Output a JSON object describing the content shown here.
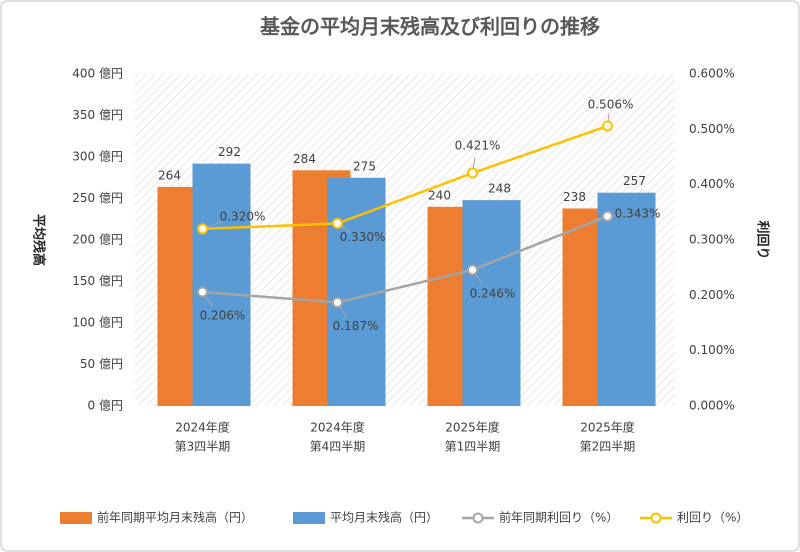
{
  "chart_data": {
    "type": "bar_line",
    "title": "基金の平均月末残高及び利回りの推移",
    "ylabel": "平均残高",
    "y2label": "利回り",
    "categories": [
      [
        "2024年度",
        "第3四半期"
      ],
      [
        "2024年度",
        "第4四半期"
      ],
      [
        "2025年度",
        "第1四半期"
      ],
      [
        "2025年度",
        "第2四半期"
      ]
    ],
    "ylim": [
      0,
      400
    ],
    "yticks": [
      {
        "value": 0,
        "label": "0 億円"
      },
      {
        "value": 50,
        "label": "50 億円"
      },
      {
        "value": 100,
        "label": "100 億円"
      },
      {
        "value": 150,
        "label": "150 億円"
      },
      {
        "value": 200,
        "label": "200 億円"
      },
      {
        "value": 250,
        "label": "250 億円"
      },
      {
        "value": 300,
        "label": "300 億円"
      },
      {
        "value": 350,
        "label": "350 億円"
      },
      {
        "value": 400,
        "label": "400 億円"
      }
    ],
    "y2lim": [
      0,
      0.6
    ],
    "y2ticks": [
      {
        "value": 0,
        "label": "0.000%"
      },
      {
        "value": 0.1,
        "label": "0.100%"
      },
      {
        "value": 0.2,
        "label": "0.200%"
      },
      {
        "value": 0.3,
        "label": "0.300%"
      },
      {
        "value": 0.4,
        "label": "0.400%"
      },
      {
        "value": 0.5,
        "label": "0.500%"
      },
      {
        "value": 0.6,
        "label": "0.600%"
      }
    ],
    "series": [
      {
        "name": "前年同期平均月末残高（円）",
        "type": "bar",
        "color": "#ED7D31",
        "values": [
          264,
          284,
          240,
          238
        ]
      },
      {
        "name": "平均月末残高（円）",
        "type": "bar",
        "color": "#5B9BD5",
        "values": [
          292,
          275,
          248,
          257
        ]
      },
      {
        "name": "前年同期利回り（%）",
        "type": "line",
        "axis": "y2",
        "color": "#A5A5A5",
        "values": [
          0.206,
          0.187,
          0.246,
          0.343
        ],
        "value_labels": [
          "0.206%",
          "0.187%",
          "0.246%",
          "0.343%"
        ]
      },
      {
        "name": "利回り（%）",
        "type": "line",
        "axis": "y2",
        "color": "#FFC000",
        "values": [
          0.32,
          0.33,
          0.421,
          0.506
        ],
        "value_labels": [
          "0.320%",
          "0.330%",
          "0.421%",
          "0.506%"
        ]
      }
    ]
  }
}
